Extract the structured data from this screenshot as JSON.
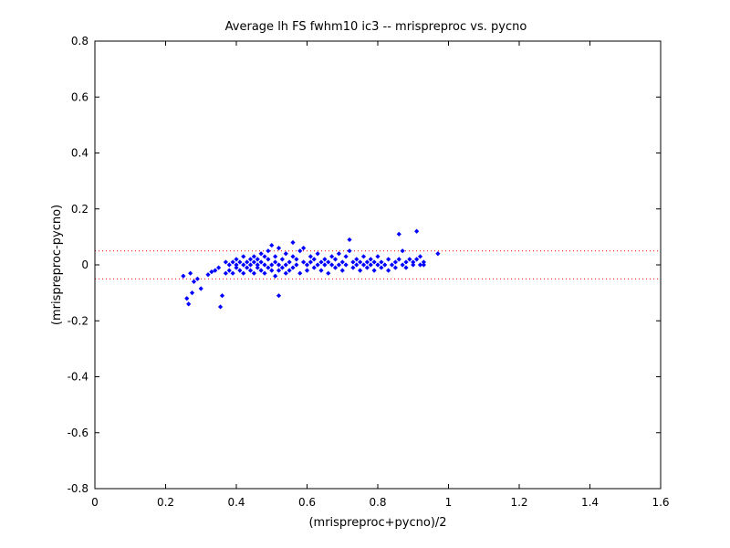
{
  "chart_data": {
    "type": "scatter",
    "title": "Average lh FS fwhm10 ic3 -- mrispreproc vs. pycno",
    "xlabel": "(mrispreproc+pycno)/2",
    "ylabel": "(mrispreproc-pycno)",
    "xlim": [
      0,
      1.6
    ],
    "ylim": [
      -0.8,
      0.8
    ],
    "xticks": [
      "0",
      "0.2",
      "0.4",
      "0.6",
      "0.8",
      "1",
      "1.2",
      "1.4",
      "1.6"
    ],
    "yticks": [
      "-0.8",
      "-0.6",
      "-0.4",
      "-0.2",
      "0",
      "0.2",
      "0.4",
      "0.6",
      "0.8"
    ],
    "grid": false,
    "colors": {
      "points": "#0000ff",
      "reference_lines": "#ff0000",
      "axes": "#000000"
    },
    "reference_lines": [
      0.05,
      -0.05
    ],
    "points": [
      [
        0.25,
        -0.04
      ],
      [
        0.26,
        -0.12
      ],
      [
        0.265,
        -0.14
      ],
      [
        0.27,
        -0.03
      ],
      [
        0.275,
        -0.1
      ],
      [
        0.28,
        -0.06
      ],
      [
        0.29,
        -0.05
      ],
      [
        0.3,
        -0.085
      ],
      [
        0.32,
        -0.035
      ],
      [
        0.33,
        -0.025
      ],
      [
        0.34,
        -0.02
      ],
      [
        0.35,
        -0.01
      ],
      [
        0.355,
        -0.15
      ],
      [
        0.36,
        -0.11
      ],
      [
        0.37,
        -0.03
      ],
      [
        0.37,
        0.01
      ],
      [
        0.38,
        0.0
      ],
      [
        0.38,
        -0.02
      ],
      [
        0.39,
        0.01
      ],
      [
        0.39,
        -0.03
      ],
      [
        0.4,
        0.0
      ],
      [
        0.4,
        0.02
      ],
      [
        0.4,
        -0.01
      ],
      [
        0.41,
        0.01
      ],
      [
        0.41,
        -0.02
      ],
      [
        0.42,
        0.0
      ],
      [
        0.42,
        0.03
      ],
      [
        0.42,
        -0.03
      ],
      [
        0.43,
        0.01
      ],
      [
        0.43,
        -0.01
      ],
      [
        0.44,
        0.02
      ],
      [
        0.44,
        -0.02
      ],
      [
        0.44,
        0.0
      ],
      [
        0.45,
        0.01
      ],
      [
        0.45,
        -0.03
      ],
      [
        0.45,
        0.03
      ],
      [
        0.46,
        0.0
      ],
      [
        0.46,
        0.02
      ],
      [
        0.46,
        -0.01
      ],
      [
        0.47,
        0.04
      ],
      [
        0.47,
        -0.02
      ],
      [
        0.47,
        0.01
      ],
      [
        0.48,
        0.0
      ],
      [
        0.48,
        0.03
      ],
      [
        0.48,
        -0.03
      ],
      [
        0.49,
        0.02
      ],
      [
        0.49,
        -0.01
      ],
      [
        0.49,
        0.05
      ],
      [
        0.5,
        0.0
      ],
      [
        0.5,
        0.07
      ],
      [
        0.5,
        -0.02
      ],
      [
        0.51,
        0.03
      ],
      [
        0.51,
        -0.04
      ],
      [
        0.51,
        0.01
      ],
      [
        0.52,
        0.0
      ],
      [
        0.52,
        0.06
      ],
      [
        0.52,
        -0.02
      ],
      [
        0.52,
        -0.11
      ],
      [
        0.53,
        0.02
      ],
      [
        0.53,
        -0.01
      ],
      [
        0.54,
        0.04
      ],
      [
        0.54,
        0.0
      ],
      [
        0.54,
        -0.03
      ],
      [
        0.55,
        0.01
      ],
      [
        0.55,
        -0.02
      ],
      [
        0.56,
        0.03
      ],
      [
        0.56,
        0.08
      ],
      [
        0.56,
        -0.01
      ],
      [
        0.57,
        0.0
      ],
      [
        0.57,
        0.02
      ],
      [
        0.58,
        -0.03
      ],
      [
        0.58,
        0.05
      ],
      [
        0.59,
        0.01
      ],
      [
        0.59,
        0.06
      ],
      [
        0.6,
        0.0
      ],
      [
        0.6,
        -0.02
      ],
      [
        0.61,
        0.03
      ],
      [
        0.61,
        0.01
      ],
      [
        0.62,
        -0.01
      ],
      [
        0.62,
        0.02
      ],
      [
        0.63,
        0.04
      ],
      [
        0.63,
        0.0
      ],
      [
        0.64,
        -0.02
      ],
      [
        0.64,
        0.01
      ],
      [
        0.65,
        0.0
      ],
      [
        0.65,
        0.02
      ],
      [
        0.66,
        -0.03
      ],
      [
        0.66,
        0.01
      ],
      [
        0.67,
        0.0
      ],
      [
        0.67,
        0.03
      ],
      [
        0.68,
        -0.01
      ],
      [
        0.68,
        0.02
      ],
      [
        0.69,
        0.0
      ],
      [
        0.69,
        0.04
      ],
      [
        0.7,
        0.01
      ],
      [
        0.7,
        -0.02
      ],
      [
        0.71,
        0.03
      ],
      [
        0.71,
        0.0
      ],
      [
        0.72,
        0.09
      ],
      [
        0.72,
        0.05
      ],
      [
        0.73,
        -0.01
      ],
      [
        0.73,
        0.01
      ],
      [
        0.74,
        0.0
      ],
      [
        0.74,
        0.02
      ],
      [
        0.75,
        -0.02
      ],
      [
        0.75,
        0.01
      ],
      [
        0.76,
        0.0
      ],
      [
        0.76,
        0.03
      ],
      [
        0.77,
        -0.01
      ],
      [
        0.77,
        0.01
      ],
      [
        0.78,
        0.0
      ],
      [
        0.78,
        0.02
      ],
      [
        0.79,
        -0.02
      ],
      [
        0.79,
        0.01
      ],
      [
        0.8,
        0.0
      ],
      [
        0.8,
        0.03
      ],
      [
        0.81,
        -0.01
      ],
      [
        0.81,
        0.01
      ],
      [
        0.82,
        0.0
      ],
      [
        0.83,
        0.02
      ],
      [
        0.83,
        -0.02
      ],
      [
        0.84,
        0.0
      ],
      [
        0.85,
        0.01
      ],
      [
        0.85,
        -0.01
      ],
      [
        0.86,
        0.02
      ],
      [
        0.86,
        0.11
      ],
      [
        0.87,
        0.0
      ],
      [
        0.87,
        0.05
      ],
      [
        0.88,
        0.01
      ],
      [
        0.88,
        -0.01
      ],
      [
        0.89,
        0.02
      ],
      [
        0.9,
        0.0
      ],
      [
        0.9,
        0.01
      ],
      [
        0.91,
        0.12
      ],
      [
        0.91,
        0.02
      ],
      [
        0.92,
        0.0
      ],
      [
        0.92,
        0.03
      ],
      [
        0.93,
        0.01
      ],
      [
        0.93,
        0.0
      ],
      [
        0.97,
        0.04
      ]
    ]
  }
}
